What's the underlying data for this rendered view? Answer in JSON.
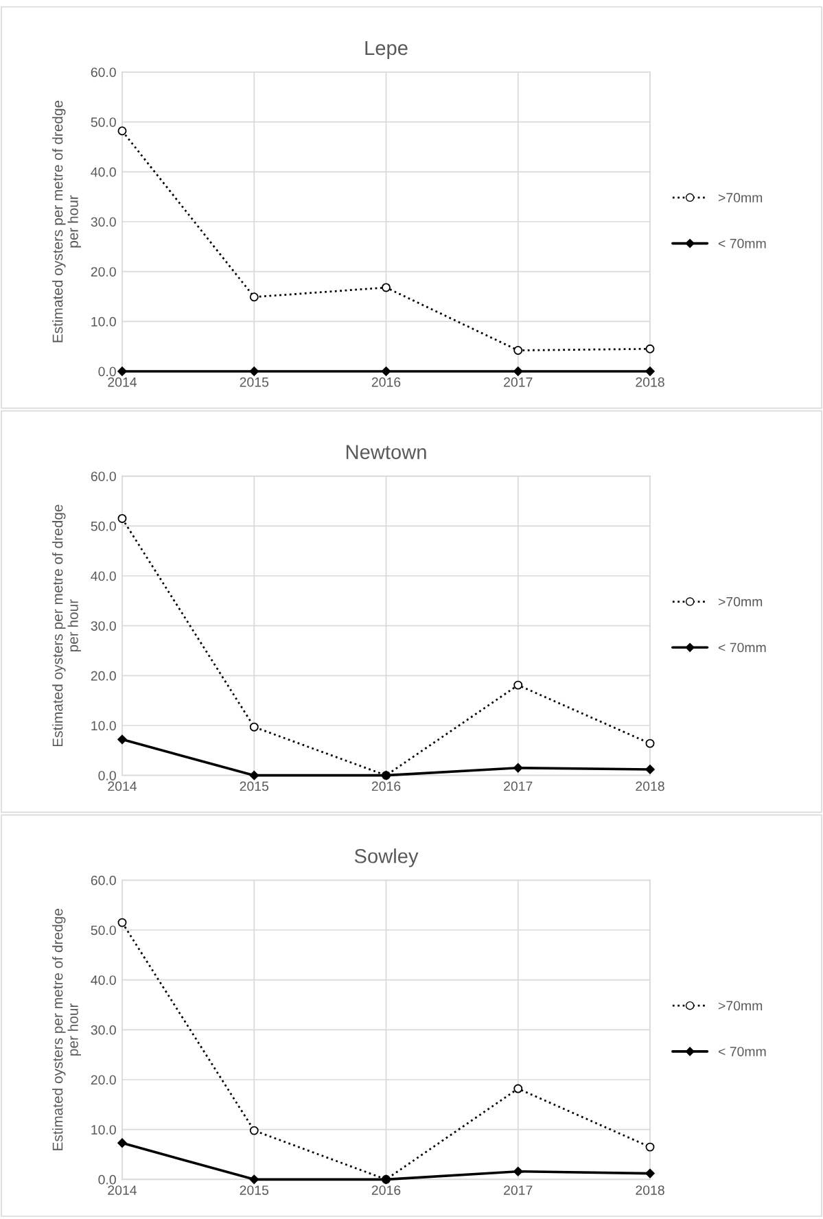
{
  "chart_data": [
    {
      "type": "line",
      "title": "Lepe",
      "ylabel": "Estimated oysters per metre of dredge\nper hour",
      "categories": [
        "2014",
        "2015",
        "2016",
        "2017",
        "2018"
      ],
      "series": [
        {
          "name": ">70mm",
          "color": "#000000",
          "marker": "circle",
          "line_style": "dotted",
          "values": [
            48.2,
            14.9,
            16.8,
            4.2,
            4.5
          ]
        },
        {
          "name": "< 70mm",
          "color": "#000000",
          "marker": "diamond",
          "line_style": "solid",
          "values": [
            0,
            0,
            0,
            0,
            0
          ]
        }
      ],
      "ylim": [
        0,
        60
      ],
      "yticks": [
        {
          "value": 0,
          "label": "0.0"
        },
        {
          "value": 10,
          "label": "10.0"
        },
        {
          "value": 20,
          "label": "20.0"
        },
        {
          "value": 30,
          "label": "30.0"
        },
        {
          "value": 40,
          "label": "40.0"
        },
        {
          "value": 50,
          "label": "50.0"
        },
        {
          "value": 60,
          "label": "60.0"
        }
      ],
      "grid": true,
      "legend": "right"
    },
    {
      "type": "line",
      "title": "Newtown",
      "ylabel": "Estimated oysters per metre of dredge\nper hour",
      "categories": [
        "2014",
        "2015",
        "2016",
        "2017",
        "2018"
      ],
      "series": [
        {
          "name": ">70mm",
          "color": "#000000",
          "marker": "circle",
          "line_style": "dotted",
          "values": [
            51.5,
            9.7,
            0,
            18.1,
            6.4
          ]
        },
        {
          "name": "< 70mm",
          "color": "#000000",
          "marker": "diamond",
          "line_style": "solid",
          "values": [
            7.2,
            0,
            0,
            1.5,
            1.2
          ]
        }
      ],
      "ylim": [
        0,
        60
      ],
      "yticks": [
        {
          "value": 0,
          "label": "0.0"
        },
        {
          "value": 10,
          "label": "10.0"
        },
        {
          "value": 20,
          "label": "20.0"
        },
        {
          "value": 30,
          "label": "30.0"
        },
        {
          "value": 40,
          "label": "40.0"
        },
        {
          "value": 50,
          "label": "50.0"
        },
        {
          "value": 60,
          "label": "60.0"
        }
      ],
      "grid": true,
      "legend": "right"
    },
    {
      "type": "line",
      "title": "Sowley",
      "ylabel": "Estimated oysters per metre of dredge\nper hour",
      "categories": [
        "2014",
        "2015",
        "2016",
        "2017",
        "2018"
      ],
      "series": [
        {
          "name": ">70mm",
          "color": "#000000",
          "marker": "circle",
          "line_style": "dotted",
          "values": [
            51.5,
            9.8,
            0,
            18.2,
            6.5
          ]
        },
        {
          "name": "< 70mm",
          "color": "#000000",
          "marker": "diamond",
          "line_style": "solid",
          "values": [
            7.3,
            0,
            0,
            1.6,
            1.2
          ]
        }
      ],
      "ylim": [
        0,
        60
      ],
      "yticks": [
        {
          "value": 0,
          "label": "0.0"
        },
        {
          "value": 10,
          "label": "10.0"
        },
        {
          "value": 20,
          "label": "20.0"
        },
        {
          "value": 30,
          "label": "30.0"
        },
        {
          "value": 40,
          "label": "40.0"
        },
        {
          "value": 50,
          "label": "50.0"
        },
        {
          "value": 60,
          "label": "60.0"
        }
      ],
      "grid": true,
      "legend": "right"
    }
  ]
}
